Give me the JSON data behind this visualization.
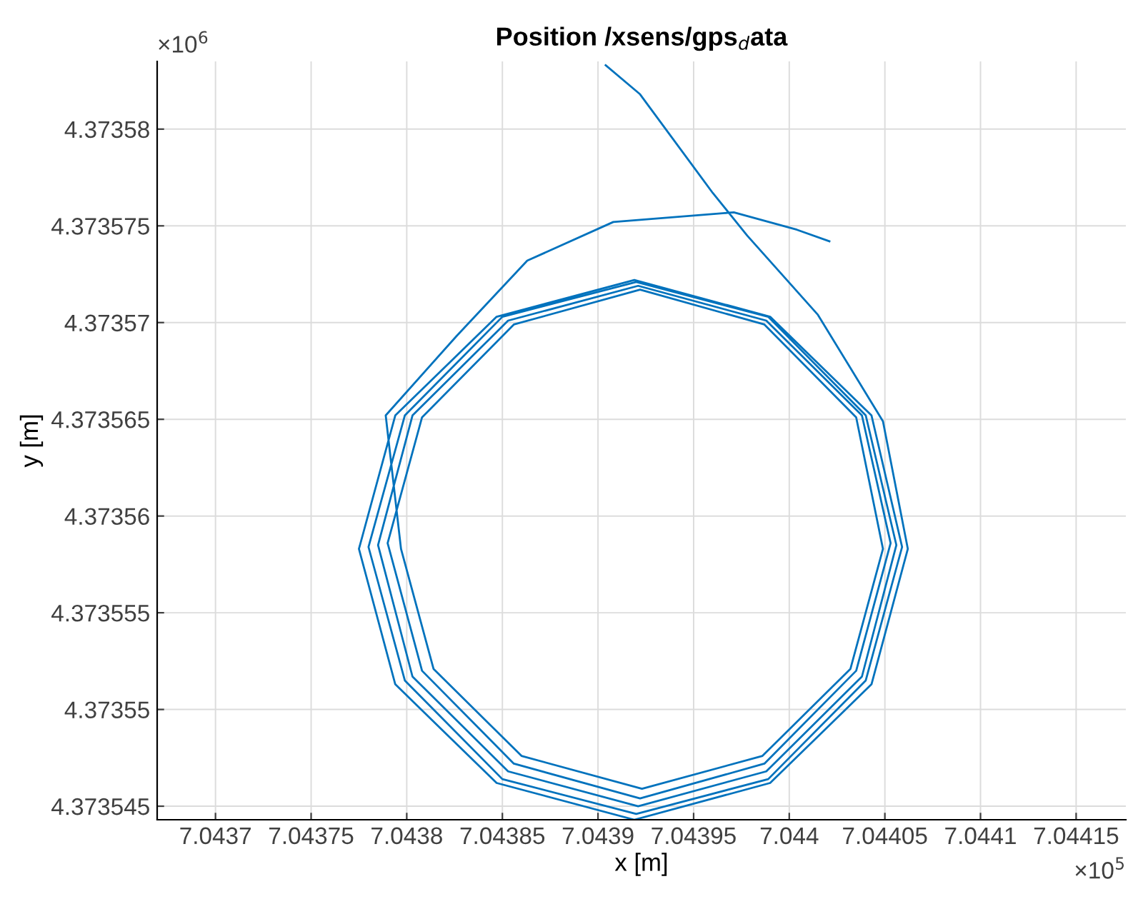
{
  "chart_data": {
    "type": "line",
    "title": "Position /xsens/gps$_{d}$ata",
    "xlabel": "x [m]",
    "ylabel": "y [m]",
    "annotations": [
      "×10$^{6}$",
      "×10$^{5}$"
    ],
    "series": [
      {
        "color": "#0072bd",
        "x": [
          7.043904,
          7.043922,
          7.04396,
          7.043978,
          7.044015,
          7.044049,
          7.044062,
          7.044043,
          7.04399,
          7.043919,
          7.043847,
          7.043794,
          7.043775,
          7.043794,
          7.043847,
          7.043919,
          7.04399,
          7.044043,
          7.044059,
          7.04404,
          7.043989,
          7.04392,
          7.04385,
          7.043799,
          7.04378,
          7.043799,
          7.04385,
          7.04392,
          7.043989,
          7.04404,
          7.044056,
          7.044038,
          7.043988,
          7.043921,
          7.043853,
          7.043803,
          7.043785,
          7.043803,
          7.043853,
          7.043921,
          7.043988,
          7.044038,
          7.044053,
          7.044035,
          7.043987,
          7.043922,
          7.043856,
          7.043808,
          7.04379,
          7.043808,
          7.043856,
          7.043922,
          7.043987,
          7.044035,
          7.044049,
          7.044032,
          7.043986,
          7.043923,
          7.04386,
          7.043814,
          7.043797,
          7.043789,
          7.043826,
          7.043863,
          7.043908,
          7.043971,
          7.044004,
          7.044021
        ],
        "values": [
          4.3735833,
          4.3735818,
          4.3735767,
          4.3735745,
          4.3735704,
          4.3735649,
          4.3735583,
          4.3735513,
          4.3735462,
          4.3735443,
          4.3735462,
          4.3735513,
          4.3735583,
          4.3735652,
          4.3735703,
          4.3735722,
          4.3735703,
          4.3735652,
          4.3735584,
          4.3735515,
          4.3735464,
          4.3735446,
          4.3735464,
          4.3735515,
          4.3735584,
          4.3735652,
          4.3735703,
          4.3735721,
          4.3735703,
          4.3735652,
          4.3735585,
          4.3735517,
          4.3735468,
          4.373545,
          4.3735468,
          4.3735517,
          4.3735585,
          4.3735652,
          4.3735701,
          4.3735719,
          4.3735701,
          4.3735652,
          4.3735586,
          4.373552,
          4.3735472,
          4.3735454,
          4.3735472,
          4.373552,
          4.3735586,
          4.3735651,
          4.3735699,
          4.3735717,
          4.3735699,
          4.3735651,
          4.3735583,
          4.3735521,
          4.3735476,
          4.3735459,
          4.3735476,
          4.3735521,
          4.3735583,
          4.3735652,
          4.3735693,
          4.3735732,
          4.3735752,
          4.3735757,
          4.3735748,
          4.3735742
        ]
      }
    ],
    "xlim": [
      7.0436695,
      7.044176
    ],
    "ylim": [
      4.3735443,
      4.3735835
    ],
    "xticks": [
      7.0437,
      7.04375,
      7.0438,
      7.04385,
      7.0439,
      7.04395,
      7.044,
      7.04405,
      7.0441,
      7.04415
    ],
    "yticks": [
      4.373545,
      4.37355,
      4.373555,
      4.37356,
      4.373565,
      4.37357,
      4.373575,
      4.37358
    ],
    "grid": true,
    "marker": "none",
    "line_style": "solid",
    "legend": false
  }
}
